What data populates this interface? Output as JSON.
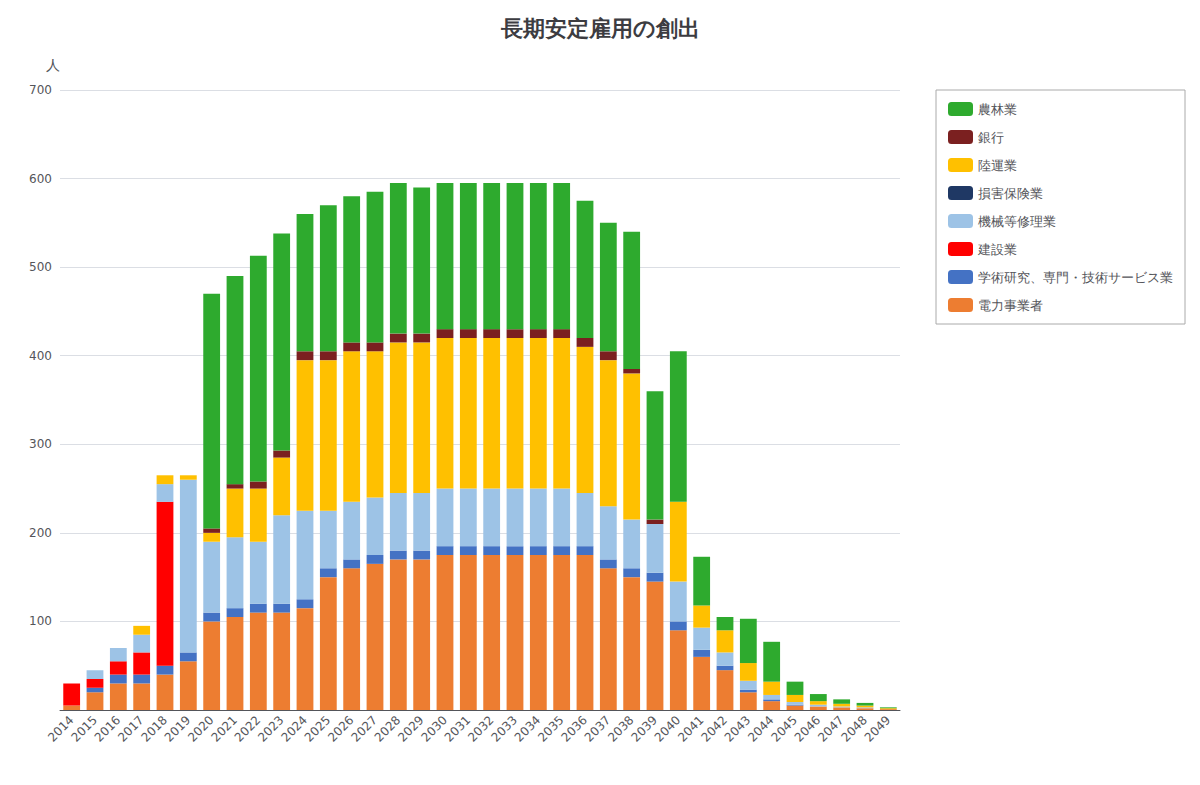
{
  "chart_data": {
    "type": "bar",
    "title": "長期安定雇用の創出",
    "ylabel": "人",
    "categories": [
      2014,
      2015,
      2016,
      2017,
      2018,
      2019,
      2020,
      2021,
      2022,
      2023,
      2024,
      2025,
      2026,
      2027,
      2028,
      2029,
      2030,
      2031,
      2032,
      2033,
      2034,
      2035,
      2036,
      2037,
      2038,
      2039,
      2040,
      2041,
      2042,
      2043,
      2044,
      2045,
      2046,
      2047,
      2048,
      2049
    ],
    "series": [
      {
        "name": "電力事業者",
        "color": "#ED7D31",
        "values": [
          5,
          20,
          30,
          30,
          40,
          55,
          100,
          105,
          110,
          110,
          115,
          150,
          160,
          165,
          170,
          170,
          175,
          175,
          175,
          175,
          175,
          175,
          175,
          160,
          150,
          145,
          90,
          60,
          45,
          20,
          10,
          5,
          4,
          3,
          2,
          1
        ]
      },
      {
        "name": "学術研究、専門・技術サービス業",
        "color": "#4472C4",
        "values": [
          0,
          5,
          10,
          10,
          10,
          10,
          10,
          10,
          10,
          10,
          10,
          10,
          10,
          10,
          10,
          10,
          10,
          10,
          10,
          10,
          10,
          10,
          10,
          10,
          10,
          10,
          10,
          8,
          5,
          3,
          2,
          1,
          0,
          0,
          0,
          0
        ]
      },
      {
        "name": "建設業",
        "color": "#FF0000",
        "values": [
          25,
          10,
          15,
          25,
          185,
          0,
          0,
          0,
          0,
          0,
          0,
          0,
          0,
          0,
          0,
          0,
          0,
          0,
          0,
          0,
          0,
          0,
          0,
          0,
          0,
          0,
          0,
          0,
          0,
          0,
          0,
          0,
          0,
          0,
          0,
          0
        ]
      },
      {
        "name": "機械等修理業",
        "color": "#9DC3E6",
        "values": [
          0,
          10,
          15,
          20,
          20,
          195,
          80,
          80,
          70,
          100,
          100,
          65,
          65,
          65,
          65,
          65,
          65,
          65,
          65,
          65,
          65,
          65,
          60,
          60,
          55,
          55,
          45,
          25,
          15,
          10,
          5,
          3,
          2,
          1,
          1,
          0
        ]
      },
      {
        "name": "損害保険業",
        "color": "#1F3864",
        "values": [
          0,
          0,
          0,
          0,
          0,
          0,
          0,
          0,
          0,
          0,
          0,
          0,
          0,
          0,
          0,
          0,
          0,
          0,
          0,
          0,
          0,
          0,
          0,
          0,
          0,
          0,
          0,
          0,
          0,
          0,
          0,
          0,
          0,
          0,
          0,
          0
        ]
      },
      {
        "name": "陸運業",
        "color": "#FFC000",
        "values": [
          0,
          0,
          0,
          10,
          10,
          5,
          10,
          55,
          60,
          65,
          170,
          170,
          170,
          165,
          170,
          170,
          170,
          170,
          170,
          170,
          170,
          170,
          165,
          165,
          165,
          0,
          90,
          25,
          25,
          20,
          15,
          8,
          4,
          3,
          2,
          1
        ]
      },
      {
        "name": "銀行",
        "color": "#7B2020",
        "values": [
          0,
          0,
          0,
          0,
          0,
          0,
          5,
          5,
          8,
          8,
          10,
          10,
          10,
          10,
          10,
          10,
          10,
          10,
          10,
          10,
          10,
          10,
          10,
          10,
          5,
          5,
          0,
          0,
          0,
          0,
          0,
          0,
          0,
          0,
          0,
          0
        ]
      },
      {
        "name": "農林業",
        "color": "#2EAA2E",
        "values": [
          0,
          0,
          0,
          0,
          0,
          0,
          265,
          235,
          255,
          245,
          155,
          165,
          165,
          170,
          170,
          165,
          165,
          165,
          165,
          165,
          165,
          165,
          155,
          145,
          155,
          145,
          170,
          55,
          15,
          50,
          45,
          15,
          8,
          5,
          3,
          1
        ]
      }
    ],
    "ylim": [
      0,
      700
    ],
    "yticks": [
      100,
      200,
      300,
      400,
      500,
      600,
      700
    ],
    "stacked": true,
    "grid": true,
    "legend": "upper right"
  }
}
